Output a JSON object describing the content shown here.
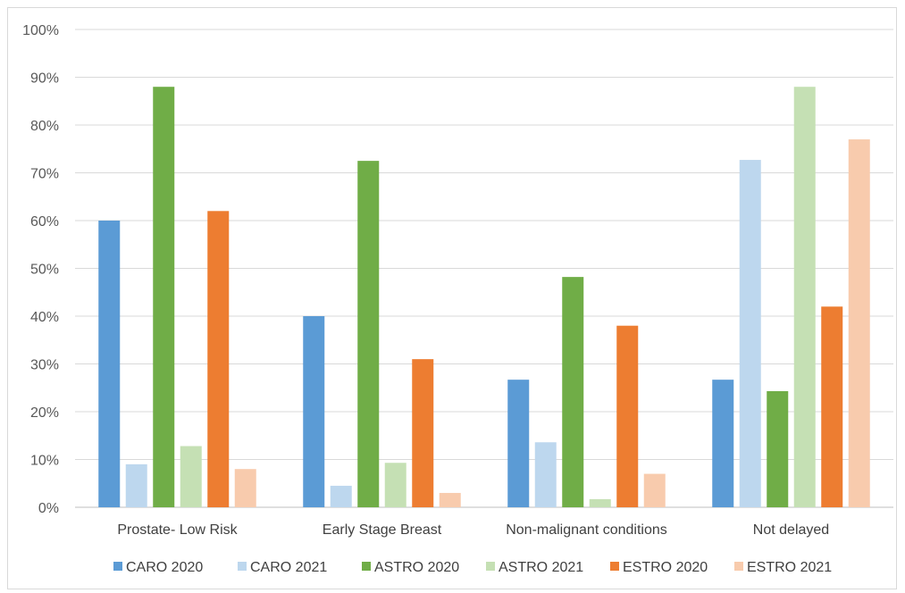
{
  "chart_data": {
    "type": "bar",
    "categories": [
      "Prostate- Low Risk",
      "Early Stage Breast",
      "Non-malignant conditions",
      "Not delayed"
    ],
    "series": [
      {
        "name": "CARO 2020",
        "color": "#5b9bd5",
        "values": [
          60,
          40,
          26.7,
          26.7
        ]
      },
      {
        "name": "CARO 2021",
        "color": "#bdd7ee",
        "values": [
          9,
          4.5,
          13.6,
          72.7
        ]
      },
      {
        "name": "ASTRO 2020",
        "color": "#70ad47",
        "values": [
          88,
          72.5,
          48.2,
          24.3
        ]
      },
      {
        "name": "ASTRO 2021",
        "color": "#c5e0b4",
        "values": [
          12.8,
          9.3,
          1.7,
          88
        ]
      },
      {
        "name": "ESTRO 2020",
        "color": "#ed7d31",
        "values": [
          62,
          31,
          38,
          42
        ]
      },
      {
        "name": "ESTRO 2021",
        "color": "#f8cbad",
        "values": [
          8,
          3,
          7,
          77
        ]
      }
    ],
    "yticks": [
      "0%",
      "10%",
      "20%",
      "30%",
      "40%",
      "50%",
      "60%",
      "70%",
      "80%",
      "90%",
      "100%"
    ],
    "ylim": [
      0,
      100
    ],
    "title": "",
    "xlabel": "",
    "ylabel": "",
    "grid": true,
    "legend_position": "bottom"
  }
}
